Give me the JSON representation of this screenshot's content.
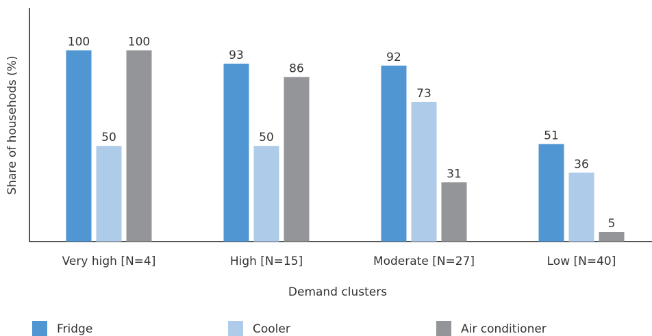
{
  "chart_data": {
    "type": "bar",
    "x_label": "Demand clusters",
    "y_label": "Share of househods (%)",
    "categories": [
      "Very high [N=4]",
      "High [N=15]",
      "Moderate [N=27]",
      "Low [N=40]"
    ],
    "series": [
      {
        "name": "Fridge",
        "color": "#4f96d3",
        "values": [
          100,
          93,
          92,
          51
        ]
      },
      {
        "name": "Cooler",
        "color": "#aecbea",
        "values": [
          50,
          50,
          73,
          36
        ]
      },
      {
        "name": "Air conditioner",
        "color": "#939598",
        "values": [
          100,
          86,
          31,
          5
        ]
      }
    ],
    "ylim": [
      0,
      122
    ],
    "legend": "bottom"
  }
}
